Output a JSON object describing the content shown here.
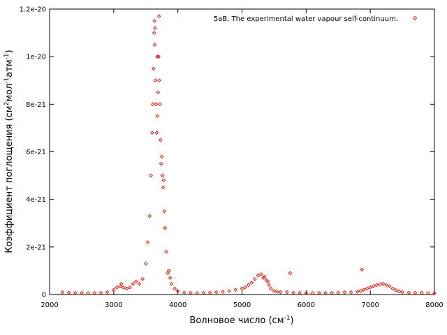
{
  "chart_data": {
    "type": "scatter",
    "xlabel": "Волновое число (см",
    "xlabel_sup": "-1",
    "xlabel_end": ")",
    "ylabel_parts": [
      {
        "t": "Коэффициент поглощения (см",
        "sup": false
      },
      {
        "t": "2",
        "sup": true
      },
      {
        "t": "мол",
        "sup": false
      },
      {
        "t": "-1",
        "sup": true
      },
      {
        "t": "атм",
        "sup": false
      },
      {
        "t": "-1",
        "sup": true
      },
      {
        "t": ")",
        "sup": false
      }
    ],
    "xlim": [
      2000,
      8000
    ],
    "ylim": [
      0,
      1.2e-20
    ],
    "x_ticks": [
      2000,
      3000,
      4000,
      5000,
      6000,
      7000,
      8000
    ],
    "x_tick_labels": [
      "2000",
      "3000",
      "4000",
      "5000",
      "6000",
      "7000",
      "8000"
    ],
    "y_ticks": [
      0,
      2e-21,
      4e-21,
      6e-21,
      8e-21,
      1e-20,
      1.2e-20
    ],
    "y_tick_labels": [
      "0",
      "2e-21",
      "4e-21",
      "6e-21",
      "8e-21",
      "1e-20",
      "1.2e-20"
    ],
    "grid": false,
    "legend_position": "top-right",
    "series": [
      {
        "name": "5aB. The experimental water vapour self-continuum.",
        "color": "#dd2211",
        "marker": "open-diamond",
        "x": [
          2200,
          2300,
          2400,
          2500,
          2600,
          2700,
          2800,
          2900,
          3000,
          3050,
          3100,
          3150,
          3200,
          3250,
          3300,
          3350,
          3400,
          3450,
          3500,
          3530,
          3560,
          3580,
          3600,
          3610,
          3620,
          3630,
          3640,
          3650,
          3660,
          3670,
          3680,
          3690,
          3700,
          3710,
          3720,
          3730,
          3740,
          3750,
          3760,
          3770,
          3780,
          3790,
          3800,
          3820,
          3840,
          3860,
          3880,
          3900,
          3950,
          4000,
          4100,
          4200,
          4300,
          4400,
          4500,
          4600,
          4700,
          4800,
          4900,
          5000,
          5050,
          5100,
          5150,
          5200,
          5250,
          5300,
          5330,
          5350,
          5380,
          5400,
          5420,
          5450,
          5500,
          5550,
          5600,
          5700,
          5800,
          5900,
          6000,
          6100,
          6200,
          6300,
          6400,
          6500,
          6600,
          6700,
          6800,
          6850,
          6900,
          6950,
          7000,
          7050,
          7100,
          7150,
          7200,
          7250,
          7300,
          7350,
          7400,
          7450,
          7500,
          7600,
          7700,
          7800,
          7900,
          8000,
          3120,
          5750,
          6870,
          3635,
          3645,
          3680,
          3705
        ],
        "y": [
          9e-23,
          8e-23,
          7e-23,
          7e-23,
          6e-23,
          6e-23,
          7e-23,
          1e-22,
          2e-22,
          3e-22,
          3.5e-22,
          3e-22,
          2.5e-22,
          3e-22,
          4.5e-22,
          5.5e-22,
          4.5e-22,
          6.5e-22,
          1.3e-21,
          2.2e-21,
          3.3e-21,
          5e-21,
          6.8e-21,
          8e-21,
          9.5e-21,
          1.1e-20,
          1.05e-20,
          9e-21,
          8e-21,
          6.8e-21,
          7.5e-21,
          8.5e-21,
          1e-20,
          9e-21,
          8e-21,
          6.5e-21,
          5.5e-21,
          5.8e-21,
          5e-21,
          4.5e-21,
          4.8e-21,
          3.5e-21,
          2.8e-21,
          1.8e-21,
          9e-22,
          1e-21,
          7e-22,
          4.5e-22,
          2.5e-22,
          1.5e-22,
          8e-23,
          7e-23,
          6e-23,
          7e-23,
          8e-23,
          1e-22,
          1.2e-22,
          1.5e-22,
          2e-22,
          2.5e-22,
          3e-22,
          4e-22,
          5e-22,
          6.5e-22,
          8e-22,
          8.5e-22,
          7e-22,
          7.5e-22,
          6e-22,
          5.5e-22,
          4e-22,
          2.5e-22,
          1.5e-22,
          1.2e-22,
          1e-22,
          1e-22,
          8e-23,
          7e-23,
          6e-23,
          6e-23,
          7e-23,
          7e-23,
          7e-23,
          8e-23,
          9e-23,
          1e-22,
          1.2e-22,
          1.5e-22,
          2e-22,
          2.5e-22,
          3e-22,
          3.5e-22,
          4e-22,
          4.3e-22,
          4.5e-22,
          4e-22,
          3.5e-22,
          2.5e-22,
          1.8e-22,
          1.3e-22,
          1e-22,
          8e-23,
          7e-23,
          7e-23,
          6e-23,
          6e-23,
          4.5e-22,
          9e-22,
          1.05e-21,
          1.15e-20,
          1.12e-20,
          1e-20,
          1.17e-20
        ]
      }
    ]
  }
}
